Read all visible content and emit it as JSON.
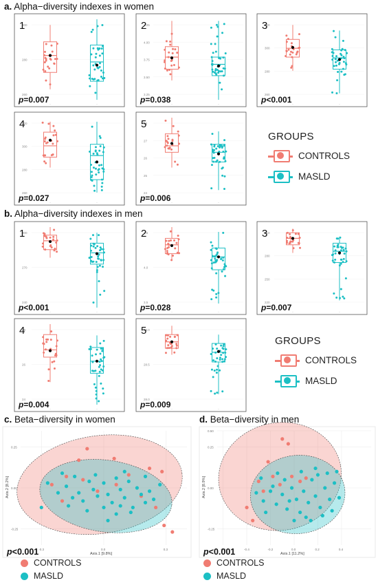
{
  "colors": {
    "controls": "#f07c72",
    "masld": "#1cbfc4"
  },
  "section_titles": {
    "a_letter": "a.",
    "a_text": "Alpha−diversity indexes in women",
    "b_letter": "b.",
    "b_text": "Alpha−diversity indexes in men",
    "c_letter": "c.",
    "c_text": "Beta−diversity in women",
    "d_letter": "d.",
    "d_text": "Beta−diversity in men"
  },
  "legend_alpha": {
    "title": "GROUPS",
    "controls": "CONTROLS",
    "masld": "MASLD"
  },
  "legend_beta": {
    "controls": "CONTROLS",
    "masld": "MASLD"
  },
  "chart_data": [
    {
      "type": "box",
      "id": "women-1",
      "panel": "1",
      "p_value": "p=0.007",
      "yticks": [
        "300",
        "280",
        "260"
      ],
      "groups": [
        {
          "name": "CONTROLS",
          "whisker": [
            0.13,
            0.93
          ],
          "box": [
            0.34,
            0.72
          ],
          "median": 0.55,
          "mean": 0.55
        },
        {
          "name": "MASLD",
          "whisker": [
            0.0,
            1.0
          ],
          "box": [
            0.23,
            0.68
          ],
          "median": 0.47,
          "mean": 0.43
        }
      ]
    },
    {
      "type": "box",
      "id": "women-2",
      "panel": "2",
      "p_value": "p=0.038",
      "yticks": [
        "4.25",
        "4.00",
        "3.75",
        "3.50",
        "3.25"
      ],
      "groups": [
        {
          "name": "CONTROLS",
          "whisker": [
            0.24,
            0.98
          ],
          "box": [
            0.38,
            0.66
          ],
          "median": 0.53,
          "mean": 0.52
        },
        {
          "name": "MASLD",
          "whisker": [
            0.0,
            0.98
          ],
          "box": [
            0.3,
            0.53
          ],
          "median": 0.44,
          "mean": 0.42
        }
      ]
    },
    {
      "type": "box",
      "id": "women-3",
      "panel": "3",
      "p_value": "p<0.001",
      "yticks": [
        "320",
        "300",
        "280",
        "260"
      ],
      "groups": [
        {
          "name": "CONTROLS",
          "whisker": [
            0.36,
            0.93
          ],
          "box": [
            0.53,
            0.75
          ],
          "median": 0.64,
          "mean": 0.65
        },
        {
          "name": "MASLD",
          "whisker": [
            0.08,
            0.86
          ],
          "box": [
            0.38,
            0.62
          ],
          "median": 0.52,
          "mean": 0.5
        }
      ]
    },
    {
      "type": "box",
      "id": "women-4",
      "panel": "4",
      "p_value": "p=0.027",
      "yticks": [
        "320",
        "300",
        "280",
        "260"
      ],
      "groups": [
        {
          "name": "CONTROLS",
          "whisker": [
            0.38,
            0.95
          ],
          "box": [
            0.51,
            0.82
          ],
          "median": 0.65,
          "mean": 0.72
        },
        {
          "name": "MASLD",
          "whisker": [
            0.07,
            0.95
          ],
          "box": [
            0.23,
            0.67
          ],
          "median": 0.53,
          "mean": 0.45
        }
      ]
    },
    {
      "type": "box",
      "id": "women-5",
      "panel": "5",
      "p_value": "p=0.006",
      "yticks": [
        "28",
        "27",
        "26",
        "25",
        "24"
      ],
      "groups": [
        {
          "name": "CONTROLS",
          "whisker": [
            0.38,
            1.0
          ],
          "box": [
            0.57,
            0.8
          ],
          "median": 0.65,
          "mean": 0.68
        },
        {
          "name": "MASLD",
          "whisker": [
            0.1,
            0.83
          ],
          "box": [
            0.45,
            0.67
          ],
          "median": 0.57,
          "mean": 0.55
        }
      ]
    },
    {
      "type": "box",
      "id": "men-1",
      "panel": "1",
      "p_value": "p<0.001",
      "yticks": [
        "300",
        "270",
        "240"
      ],
      "groups": [
        {
          "name": "CONTROLS",
          "whisker": [
            0.62,
            1.0
          ],
          "box": [
            0.72,
            0.9
          ],
          "median": 0.83,
          "mean": 0.82
        },
        {
          "name": "MASLD",
          "whisker": [
            0.0,
            0.93
          ],
          "box": [
            0.54,
            0.8
          ],
          "median": 0.68,
          "mean": 0.67
        }
      ]
    },
    {
      "type": "box",
      "id": "men-2",
      "panel": "2",
      "p_value": "p=0.028",
      "yticks": [
        "4.5",
        "4.0",
        "3.5"
      ],
      "groups": [
        {
          "name": "CONTROLS",
          "whisker": [
            0.58,
            1.0
          ],
          "box": [
            0.67,
            0.86
          ],
          "median": 0.78,
          "mean": 0.77
        },
        {
          "name": "MASLD",
          "whisker": [
            0.05,
            0.94
          ],
          "box": [
            0.47,
            0.74
          ],
          "median": 0.63,
          "mean": 0.63
        }
      ]
    },
    {
      "type": "box",
      "id": "men-3",
      "panel": "3",
      "p_value": "p=0.007",
      "yticks": [
        "310",
        "280",
        "250",
        "220"
      ],
      "groups": [
        {
          "name": "CONTROLS",
          "whisker": [
            0.68,
            0.98
          ],
          "box": [
            0.78,
            0.93
          ],
          "median": 0.86,
          "mean": 0.86
        },
        {
          "name": "MASLD",
          "whisker": [
            0.09,
            0.88
          ],
          "box": [
            0.56,
            0.8
          ],
          "median": 0.7,
          "mean": 0.68
        }
      ]
    },
    {
      "type": "box",
      "id": "men-4",
      "panel": "4",
      "p_value": "p=0.004",
      "yticks": [
        "28",
        "26",
        "24"
      ],
      "groups": [
        {
          "name": "CONTROLS",
          "whisker": [
            0.28,
            1.0
          ],
          "box": [
            0.59,
            0.87
          ],
          "median": 0.68,
          "mean": 0.67
        },
        {
          "name": "MASLD",
          "whisker": [
            0.0,
            0.86
          ],
          "box": [
            0.39,
            0.71
          ],
          "median": 0.54,
          "mean": 0.54
        }
      ]
    },
    {
      "type": "box",
      "id": "men-5",
      "panel": "5",
      "p_value": "p=0.009",
      "yticks": [
        "29.0",
        "28.5",
        "28.0"
      ],
      "groups": [
        {
          "name": "CONTROLS",
          "whisker": [
            0.62,
            0.98
          ],
          "box": [
            0.7,
            0.87
          ],
          "median": 0.78,
          "mean": 0.78
        },
        {
          "name": "MASLD",
          "whisker": [
            0.13,
            0.87
          ],
          "box": [
            0.53,
            0.76
          ],
          "median": 0.65,
          "mean": 0.66
        }
      ]
    },
    {
      "type": "scatter",
      "id": "beta-women",
      "p_value": "p<0.001",
      "xlabel": "Axis.1   [9.8%]",
      "ylabel": "Axis.2   [8.2%]",
      "xlim": [
        -0.4,
        0.4
      ],
      "ylim": [
        -0.35,
        0.35
      ],
      "xticks": [
        -0.3,
        0.0,
        0.3
      ],
      "yticks": [
        0.25,
        0.0,
        -0.25
      ],
      "ellipses": [
        {
          "name": "CONTROLS",
          "center": [
            -0.02,
            0.02
          ],
          "radii": [
            0.4,
            0.3
          ],
          "rotation": -8
        },
        {
          "name": "MASLD",
          "center": [
            0.01,
            -0.05
          ],
          "radii": [
            0.32,
            0.22
          ],
          "rotation": 8
        }
      ],
      "series": [
        {
          "name": "CONTROLS",
          "points": [
            [
              -0.12,
              0.17
            ],
            [
              -0.08,
              0.24
            ],
            [
              0.05,
              0.18
            ],
            [
              0.22,
              0.12
            ],
            [
              0.28,
              0.1
            ],
            [
              -0.25,
              0.02
            ],
            [
              -0.18,
              0.07
            ],
            [
              -0.1,
              0.05
            ],
            [
              0.12,
              0.08
            ],
            [
              0.06,
              0.02
            ],
            [
              -0.03,
              -0.02
            ],
            [
              0.18,
              -0.05
            ],
            [
              -0.2,
              -0.08
            ],
            [
              0.25,
              -0.12
            ],
            [
              0.29,
              -0.23
            ],
            [
              0.33,
              -0.27
            ]
          ]
        },
        {
          "name": "MASLD",
          "points": [
            [
              -0.27,
              0.03
            ],
            [
              -0.22,
              -0.03
            ],
            [
              -0.18,
              0.01
            ],
            [
              -0.15,
              -0.06
            ],
            [
              -0.12,
              -0.03
            ],
            [
              -0.1,
              -0.08
            ],
            [
              -0.07,
              0.04
            ],
            [
              -0.05,
              -0.01
            ],
            [
              -0.03,
              -0.05
            ],
            [
              0.0,
              0.03
            ],
            [
              0.02,
              -0.04
            ],
            [
              0.04,
              -0.09
            ],
            [
              0.06,
              0.06
            ],
            [
              0.08,
              -0.01
            ],
            [
              0.1,
              -0.06
            ],
            [
              0.12,
              0.04
            ],
            [
              0.14,
              -0.12
            ],
            [
              0.16,
              0.0
            ],
            [
              0.18,
              -0.04
            ],
            [
              0.2,
              0.07
            ],
            [
              0.22,
              -0.02
            ],
            [
              -0.14,
              0.07
            ],
            [
              -0.08,
              -0.14
            ],
            [
              0.0,
              -0.12
            ],
            [
              0.06,
              -0.16
            ],
            [
              -0.2,
              0.09
            ],
            [
              -0.3,
              -0.12
            ],
            [
              0.1,
              0.1
            ],
            [
              0.02,
              -0.2
            ],
            [
              0.2,
              -0.09
            ],
            [
              0.27,
              0.02
            ],
            [
              -0.04,
              0.08
            ],
            [
              0.08,
              -0.11
            ],
            [
              -0.17,
              -0.11
            ],
            [
              0.13,
              -0.15
            ],
            [
              0.24,
              -0.07
            ]
          ]
        }
      ]
    },
    {
      "type": "scatter",
      "id": "beta-men",
      "p_value": "p<0.001",
      "xlabel": "Axis.1   [11.2%]",
      "ylabel": "Axis.2   [8.9%]",
      "xlim": [
        -0.65,
        0.65
      ],
      "ylim": [
        -0.35,
        0.35
      ],
      "xticks": [
        -0.6,
        -0.4,
        -0.2,
        0.0,
        0.2,
        0.4
      ],
      "yticks": [
        0.5,
        0.25,
        0.0,
        -0.25
      ],
      "ellipses": [
        {
          "name": "CONTROLS",
          "center": [
            -0.12,
            0.07
          ],
          "radii": [
            0.52,
            0.33
          ],
          "rotation": -10
        },
        {
          "name": "MASLD",
          "center": [
            0.03,
            -0.04
          ],
          "radii": [
            0.4,
            0.24
          ],
          "rotation": -6
        }
      ],
      "series": [
        {
          "name": "CONTROLS",
          "points": [
            [
              -0.1,
              0.3
            ],
            [
              -0.05,
              0.27
            ],
            [
              -0.22,
              0.16
            ],
            [
              -0.18,
              0.07
            ],
            [
              -0.3,
              0.04
            ],
            [
              -0.26,
              -0.02
            ],
            [
              -0.12,
              0.02
            ],
            [
              -0.02,
              0.07
            ],
            [
              0.05,
              0.04
            ],
            [
              0.1,
              0.06
            ],
            [
              -0.4,
              -0.12
            ],
            [
              -0.35,
              -0.2
            ]
          ]
        },
        {
          "name": "MASLD",
          "points": [
            [
              -0.32,
              -0.03
            ],
            [
              -0.26,
              -0.08
            ],
            [
              -0.2,
              -0.02
            ],
            [
              -0.15,
              -0.1
            ],
            [
              -0.1,
              -0.04
            ],
            [
              -0.06,
              -0.13
            ],
            [
              -0.02,
              0.0
            ],
            [
              0.02,
              -0.07
            ],
            [
              0.05,
              -0.15
            ],
            [
              0.08,
              -0.02
            ],
            [
              0.12,
              -0.09
            ],
            [
              0.15,
              0.05
            ],
            [
              0.18,
              -0.05
            ],
            [
              0.22,
              -0.12
            ],
            [
              0.26,
              0.0
            ],
            [
              0.3,
              -0.07
            ],
            [
              0.34,
              0.03
            ],
            [
              0.38,
              -0.06
            ],
            [
              -0.08,
              0.05
            ],
            [
              -0.24,
              -0.15
            ],
            [
              0.0,
              -0.2
            ],
            [
              0.1,
              -0.18
            ],
            [
              0.2,
              0.08
            ],
            [
              0.28,
              0.09
            ],
            [
              -0.14,
              0.09
            ],
            [
              0.06,
              0.1
            ],
            [
              -0.28,
              0.06
            ],
            [
              0.14,
              -0.2
            ],
            [
              0.24,
              -0.17
            ],
            [
              0.32,
              -0.14
            ],
            [
              -0.04,
              -0.08
            ],
            [
              0.18,
              0.12
            ],
            [
              0.36,
              0.1
            ],
            [
              -0.18,
              0.01
            ]
          ]
        }
      ]
    }
  ]
}
